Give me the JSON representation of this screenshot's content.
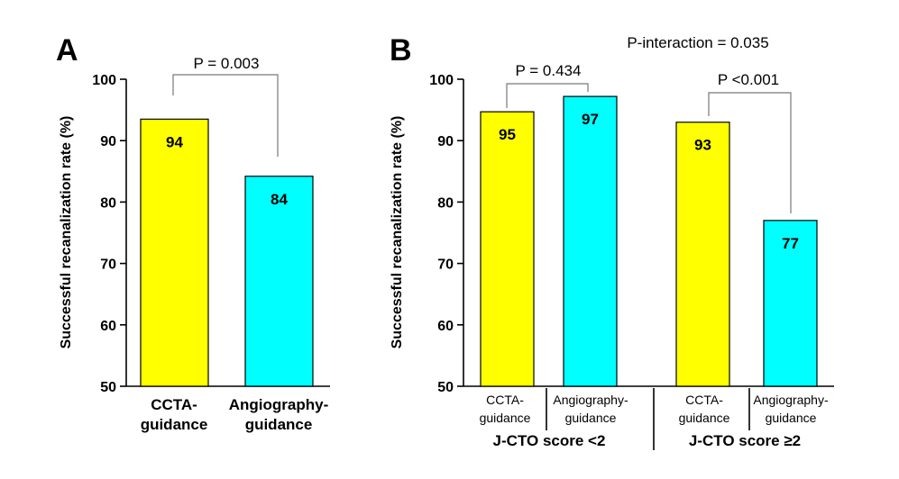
{
  "chart_data": [
    {
      "type": "bar",
      "panel": "A",
      "ylabel": "Successful recanalization rate (%)",
      "ylim": [
        50,
        100
      ],
      "yticks": [
        50,
        60,
        70,
        80,
        90,
        100
      ],
      "categories": [
        {
          "lines": [
            "CCTA-",
            "guidance"
          ]
        },
        {
          "lines": [
            "Angiography-",
            "guidance"
          ]
        }
      ],
      "values": [
        93.5,
        84.2
      ],
      "labels": [
        "94",
        "84"
      ],
      "colors": [
        "#ffff00",
        "#00ffff"
      ],
      "comparisons": [
        {
          "text": "P = 0.003",
          "between": [
            0,
            1
          ]
        }
      ]
    },
    {
      "type": "bar",
      "panel": "B",
      "ylabel": "Successful recanalization rate (%)",
      "ylim": [
        50,
        100
      ],
      "yticks": [
        50,
        60,
        70,
        80,
        90,
        100
      ],
      "annotation": "P-interaction = 0.035",
      "groups": [
        {
          "label": "J-CTO score <2",
          "categories": [
            {
              "lines": [
                "CCTA-",
                "guidance"
              ]
            },
            {
              "lines": [
                "Angiography-",
                "guidance"
              ]
            }
          ],
          "values": [
            94.7,
            97.2
          ],
          "labels": [
            "95",
            "97"
          ],
          "colors": [
            "#ffff00",
            "#00ffff"
          ],
          "comparison": {
            "text": "P = 0.434"
          }
        },
        {
          "label": "J-CTO score ≥2",
          "categories": [
            {
              "lines": [
                "CCTA-",
                "guidance"
              ]
            },
            {
              "lines": [
                "Angiography-",
                "guidance"
              ]
            }
          ],
          "values": [
            93.0,
            77.0
          ],
          "labels": [
            "93",
            "77"
          ],
          "colors": [
            "#ffff00",
            "#00ffff"
          ],
          "comparison": {
            "text": "P <0.001"
          }
        }
      ]
    }
  ]
}
